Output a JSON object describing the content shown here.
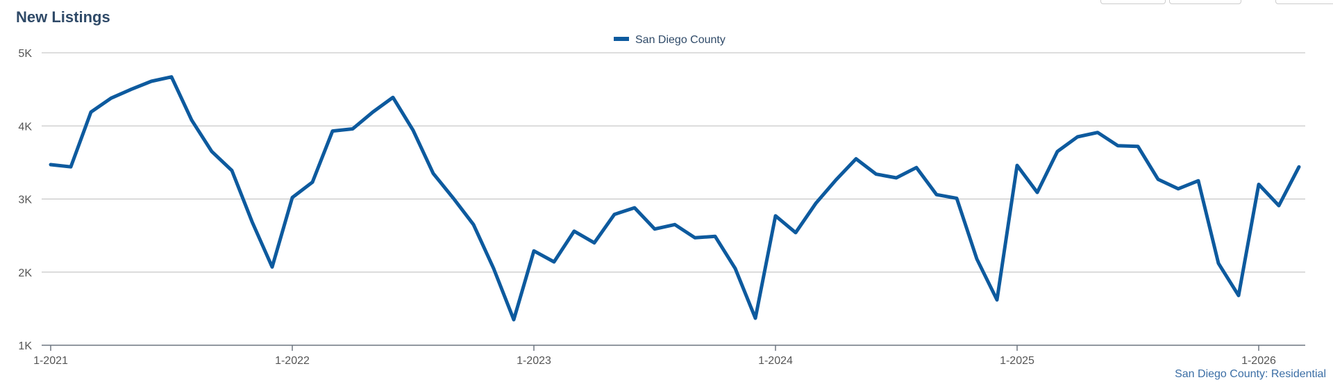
{
  "chart_data": {
    "type": "line",
    "title": "New Listings",
    "legend_position": "top-center",
    "grid": true,
    "ylim": [
      1000,
      5000
    ],
    "y_ticks": [
      {
        "value": 1000,
        "label": "1K"
      },
      {
        "value": 2000,
        "label": "2K"
      },
      {
        "value": 3000,
        "label": "3K"
      },
      {
        "value": 4000,
        "label": "4K"
      },
      {
        "value": 5000,
        "label": "5K"
      }
    ],
    "x_ticks": [
      "1-2021",
      "1-2022",
      "1-2023",
      "1-2024",
      "1-2025",
      "1-2026"
    ],
    "x_start": "2021-01",
    "source_label": "San Diego County: Residential",
    "series": [
      {
        "name": "San Diego County",
        "color": "#0d5a9e",
        "values": [
          3470,
          3440,
          4190,
          4380,
          4500,
          4610,
          4670,
          4080,
          3650,
          3390,
          2690,
          2070,
          3020,
          3230,
          3930,
          3960,
          4190,
          4390,
          3940,
          3350,
          3010,
          2650,
          2050,
          1350,
          2290,
          2140,
          2560,
          2400,
          2790,
          2880,
          2590,
          2650,
          2470,
          2490,
          2050,
          1370,
          2770,
          2540,
          2940,
          3260,
          3550,
          3340,
          3290,
          3430,
          3060,
          3010,
          2180,
          1620,
          3460,
          3090,
          3650,
          3850,
          3910,
          3730,
          3720,
          3270,
          3140,
          3250,
          2120,
          1680,
          3200,
          2910,
          3440
        ]
      }
    ]
  }
}
